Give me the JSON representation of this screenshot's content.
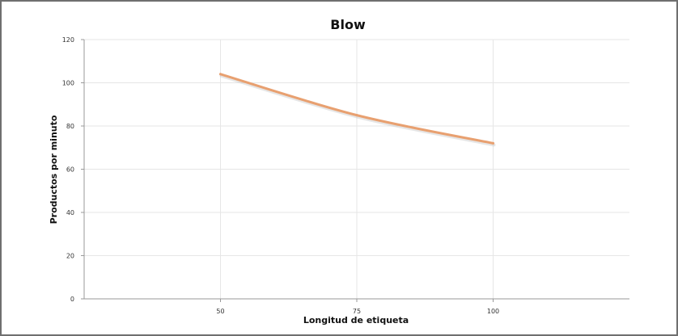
{
  "chart_data": {
    "type": "line",
    "title": "Blow",
    "xlabel": "Longitud de etiqueta",
    "ylabel": "Productos por minuto",
    "x": [
      50,
      75,
      100
    ],
    "x_ticks": [
      "50",
      "75",
      "100"
    ],
    "y_ticks": [
      "0",
      "20",
      "40",
      "60",
      "80",
      "100",
      "120"
    ],
    "ylim": [
      0,
      120
    ],
    "xlim": [
      25,
      125
    ],
    "series": [
      {
        "values": [
          104,
          85,
          72
        ],
        "color": "#e8a070"
      }
    ],
    "grid": true,
    "legend": "none"
  }
}
